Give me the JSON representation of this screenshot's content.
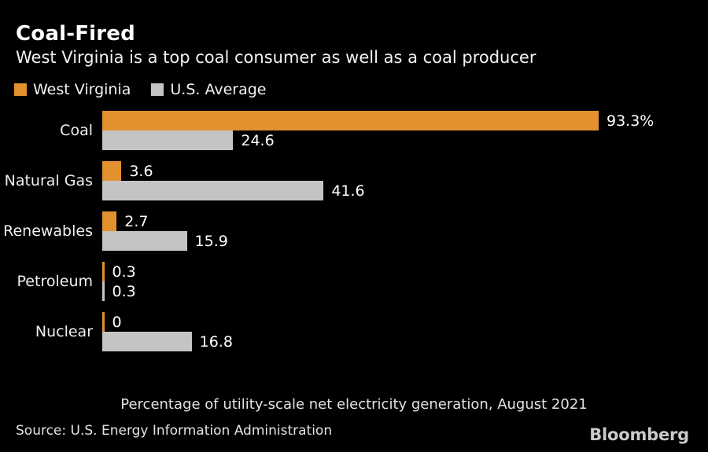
{
  "header": {
    "title": "Coal-Fired",
    "subtitle": "West Virginia is a top coal consumer as well as a coal producer"
  },
  "legend": [
    {
      "label": "West Virginia",
      "color": "#E2912E"
    },
    {
      "label": "U.S. Average",
      "color": "#C4C4C4"
    }
  ],
  "chart_data": {
    "type": "bar",
    "orientation": "horizontal",
    "title": "Coal-Fired",
    "subtitle": "West Virginia is a top coal consumer as well as a coal producer",
    "categories": [
      "Coal",
      "Natural Gas",
      "Renewables",
      "Petroleum",
      "Nuclear"
    ],
    "series": [
      {
        "name": "West Virginia",
        "color": "#E2912E",
        "values": [
          93.3,
          3.6,
          2.7,
          0.3,
          0
        ],
        "labels": [
          "93.3%",
          "3.6",
          "2.7",
          "0.3",
          "0"
        ]
      },
      {
        "name": "U.S. Average",
        "color": "#C4C4C4",
        "values": [
          24.6,
          41.6,
          15.9,
          0.3,
          16.8
        ],
        "labels": [
          "24.6",
          "41.6",
          "15.9",
          "0.3",
          "16.8"
        ]
      }
    ],
    "xlim": [
      0,
      100
    ],
    "grid": false,
    "legend_position": "top-left",
    "footnote": "Percentage of utility-scale net electricity generation, August 2021"
  },
  "footer": {
    "source": "Source: U.S. Energy Information Administration",
    "logo": "Bloomberg"
  },
  "colors": {
    "background": "#000000",
    "text": "#FFFFFF",
    "west_virginia": "#E2912E",
    "us_average": "#C4C4C4",
    "muted_text": "#E3E3E3",
    "logo_text": "#C9C9C9"
  }
}
